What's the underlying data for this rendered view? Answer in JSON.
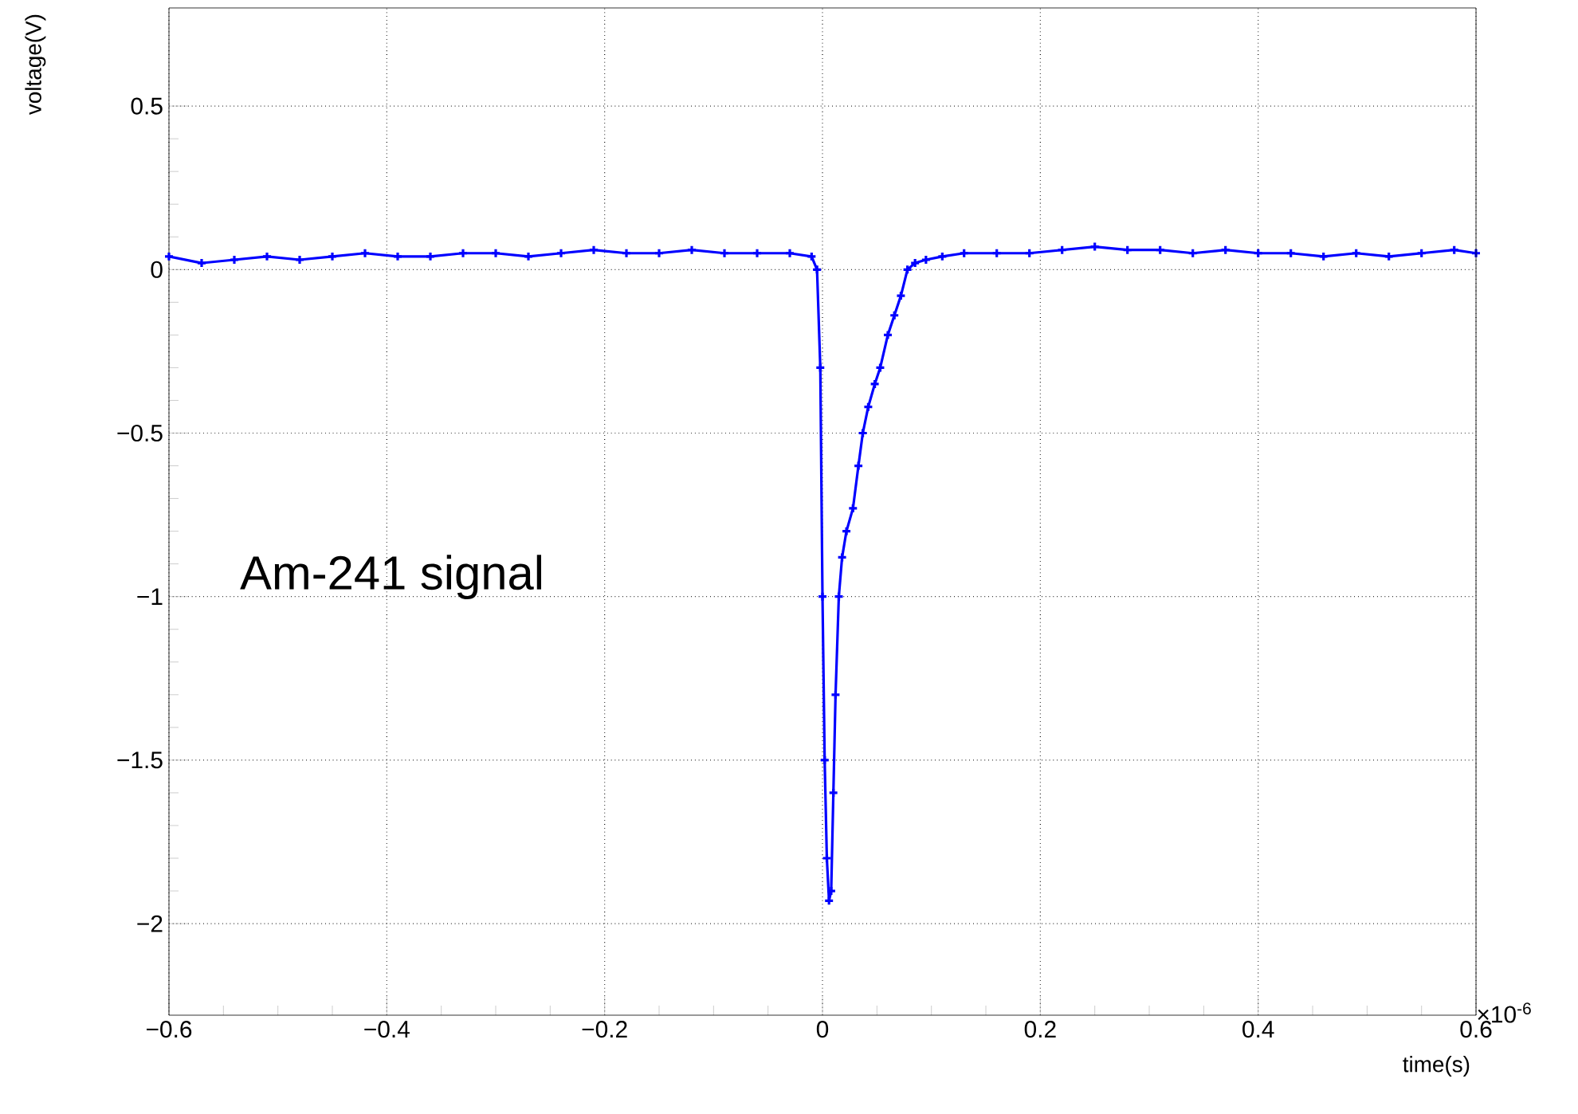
{
  "chart_data": {
    "type": "line",
    "xlabel": "time(s)",
    "ylabel": "voltage(V)",
    "annotations": [
      "Am-241 signal",
      "×10$^{-6}$"
    ],
    "series": [
      {
        "color": "#0000ff",
        "x": [
          -0.6,
          -0.57,
          -0.54,
          -0.51,
          -0.48,
          -0.45,
          -0.42,
          -0.39,
          -0.36,
          -0.33,
          -0.3,
          -0.27,
          -0.24,
          -0.21,
          -0.18,
          -0.15,
          -0.12,
          -0.09,
          -0.06,
          -0.03,
          -0.01,
          -0.005,
          -0.002,
          0.0,
          0.002,
          0.004,
          0.006,
          0.008,
          0.01,
          0.012,
          0.015,
          0.018,
          0.022,
          0.028,
          0.033,
          0.037,
          0.042,
          0.048,
          0.053,
          0.06,
          0.066,
          0.072,
          0.078,
          0.085,
          0.095,
          0.11,
          0.13,
          0.16,
          0.19,
          0.22,
          0.25,
          0.28,
          0.31,
          0.34,
          0.37,
          0.4,
          0.43,
          0.46,
          0.49,
          0.52,
          0.55,
          0.58,
          0.6
        ],
        "values": [
          0.04,
          0.02,
          0.03,
          0.04,
          0.03,
          0.04,
          0.05,
          0.04,
          0.04,
          0.05,
          0.05,
          0.04,
          0.05,
          0.06,
          0.05,
          0.05,
          0.06,
          0.05,
          0.05,
          0.05,
          0.04,
          0.0,
          -0.3,
          -1.0,
          -1.5,
          -1.8,
          -1.93,
          -1.9,
          -1.6,
          -1.3,
          -1.0,
          -0.88,
          -0.8,
          -0.73,
          -0.6,
          -0.5,
          -0.42,
          -0.35,
          -0.3,
          -0.2,
          -0.14,
          -0.08,
          0.0,
          0.02,
          0.03,
          0.04,
          0.05,
          0.05,
          0.05,
          0.06,
          0.07,
          0.06,
          0.06,
          0.05,
          0.06,
          0.05,
          0.05,
          0.04,
          0.05,
          0.04,
          0.05,
          0.06,
          0.05
        ]
      }
    ],
    "xlim": [
      -0.6,
      0.6
    ],
    "ylim": [
      -2.28,
      0.8
    ],
    "xticks": [
      {
        "value": -0.6,
        "label": "−0.6"
      },
      {
        "value": -0.4,
        "label": "−0.4"
      },
      {
        "value": -0.2,
        "label": "−0.2"
      },
      0,
      0.2,
      0.4,
      0.6
    ],
    "yticks": [
      {
        "value": -2,
        "label": "−2"
      },
      {
        "value": -1.5,
        "label": "−1.5"
      },
      {
        "value": -1,
        "label": "−1"
      },
      {
        "value": -0.5,
        "label": "−0.5"
      },
      0,
      0.5
    ],
    "grid": true,
    "marker": "cross",
    "line_style": "solid"
  }
}
